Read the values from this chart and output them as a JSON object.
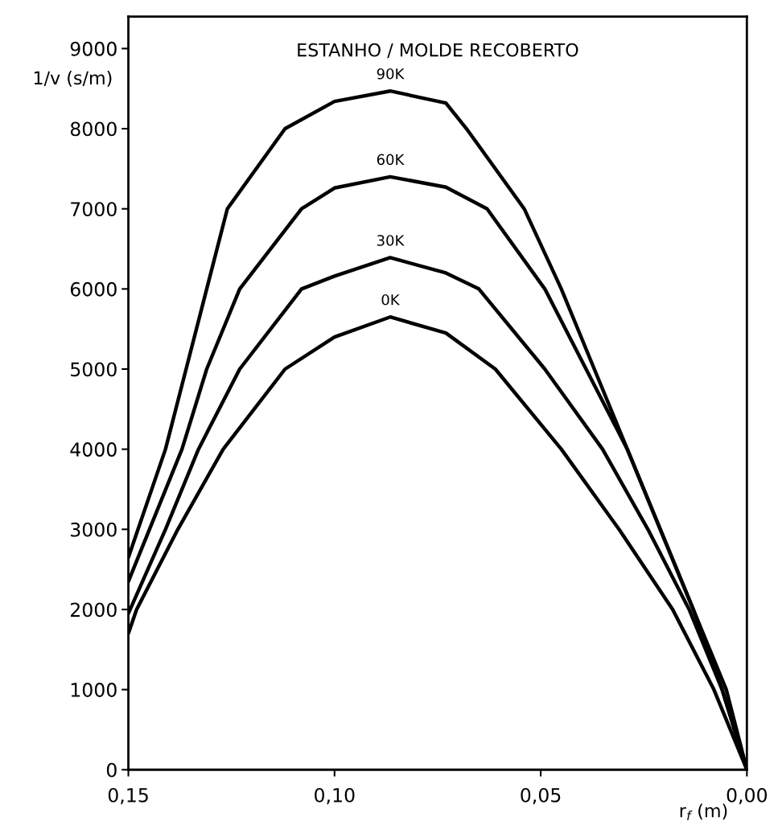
{
  "chart_data": {
    "type": "line",
    "title": "ESTANHO / MOLDE RECOBERTO",
    "xlabel": "r$_{f}$ (m)",
    "ylabel": "1/v (s/m)",
    "xlim": [
      0.15,
      0.0
    ],
    "ylim": [
      0,
      9400
    ],
    "xticks": [
      {
        "value": 0.15,
        "label": "0,15"
      },
      {
        "value": 0.1,
        "label": "0,10"
      },
      {
        "value": 0.05,
        "label": "0,05"
      },
      {
        "value": 0.0,
        "label": "0,00"
      }
    ],
    "yticks": [
      0,
      1000,
      2000,
      3000,
      4000,
      5000,
      6000,
      7000,
      8000,
      9000
    ],
    "grid": false,
    "legend": false,
    "marker": "none",
    "line_style": "solid",
    "series": [
      {
        "name": "90K",
        "color": "#000000",
        "x": [
          0.15,
          0.141,
          0.136,
          0.126,
          0.112,
          0.1,
          0.0865,
          0.073,
          0.068,
          0.054,
          0.045,
          0.037,
          0.029,
          0.021,
          0.013,
          0.006,
          0.0
        ],
        "values": [
          2650,
          4000,
          5000,
          7000,
          8000,
          8340,
          8470,
          8320,
          8000,
          7000,
          6000,
          5000,
          4000,
          3000,
          2000,
          1000,
          0
        ]
      },
      {
        "name": "60K",
        "color": "#000000",
        "x": [
          0.15,
          0.137,
          0.131,
          0.123,
          0.108,
          0.1,
          0.0865,
          0.073,
          0.063,
          0.049,
          0.039,
          0.029,
          0.021,
          0.013,
          0.005,
          0.0
        ],
        "values": [
          2350,
          4000,
          5000,
          6000,
          7000,
          7260,
          7400,
          7270,
          7000,
          6000,
          5000,
          4000,
          3000,
          2000,
          1000,
          0
        ]
      },
      {
        "name": "30K",
        "color": "#000000",
        "x": [
          0.15,
          0.141,
          0.133,
          0.123,
          0.108,
          0.1,
          0.0865,
          0.073,
          0.065,
          0.049,
          0.035,
          0.024,
          0.014,
          0.006,
          0.0
        ],
        "values": [
          1950,
          3000,
          4000,
          5000,
          6000,
          6160,
          6390,
          6200,
          6000,
          5000,
          4000,
          3000,
          2000,
          1000,
          0
        ]
      },
      {
        "name": "0K",
        "color": "#000000",
        "x": [
          0.15,
          0.148,
          0.138,
          0.127,
          0.112,
          0.1,
          0.0865,
          0.073,
          0.061,
          0.045,
          0.031,
          0.018,
          0.008,
          0.0
        ],
        "values": [
          1700,
          2000,
          3000,
          4000,
          5000,
          5400,
          5650,
          5450,
          5000,
          4000,
          3000,
          2000,
          1000,
          0
        ]
      }
    ]
  }
}
